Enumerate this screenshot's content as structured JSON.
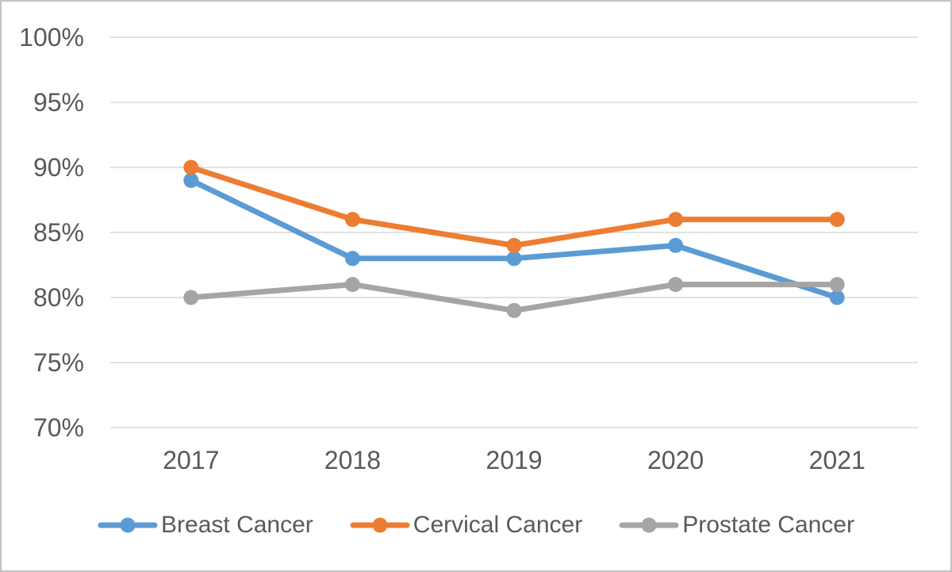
{
  "chart_data": {
    "type": "line",
    "title": "",
    "categories": [
      "2017",
      "2018",
      "2019",
      "2020",
      "2021"
    ],
    "series": [
      {
        "name": "Breast Cancer",
        "color": "#5B9BD5",
        "values": [
          89,
          83,
          83,
          84,
          80
        ]
      },
      {
        "name": "Cervical Cancer",
        "color": "#ED7D31",
        "values": [
          90,
          86,
          84,
          86,
          86
        ]
      },
      {
        "name": "Prostate Cancer",
        "color": "#A5A5A5",
        "values": [
          80,
          81,
          79,
          81,
          81
        ]
      }
    ],
    "y_axis": {
      "min": 70,
      "max": 100,
      "step": 5,
      "unit": "%",
      "tick_labels": [
        "70%",
        "75%",
        "80%",
        "85%",
        "90%",
        "95%",
        "100%"
      ]
    },
    "x_axis": {
      "tick_labels": [
        "2017",
        "2018",
        "2019",
        "2020",
        "2021"
      ]
    },
    "grid": true,
    "legend_position": "bottom"
  },
  "style": {
    "grid_color": "#D9D9D9",
    "text_color": "#595959",
    "background_color": "#FFFFFF",
    "frame_border_color": "#C2C2C2"
  }
}
